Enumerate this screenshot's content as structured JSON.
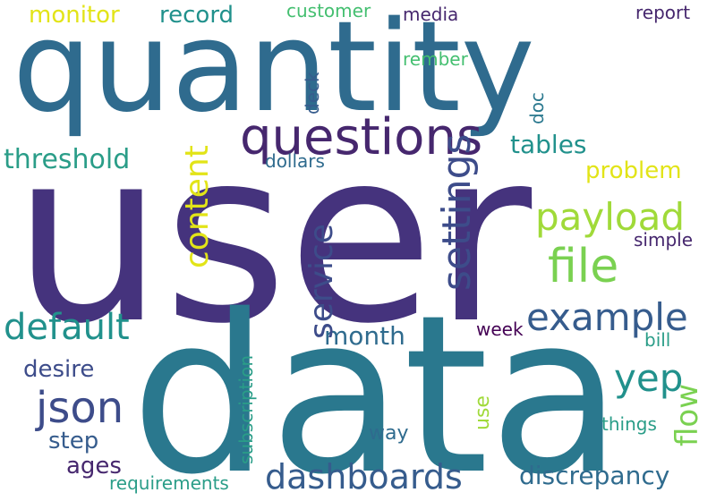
{
  "words": {
    "user": "user",
    "data": "data",
    "quantity": "quantity",
    "questions": "questions",
    "file": "file",
    "payload": "payload",
    "example": "example",
    "default": "default",
    "json": "json",
    "dashboards": "dashboards",
    "settings": "settings",
    "content": "content",
    "service": "service",
    "threshold": "threshold",
    "monitor": "monitor",
    "record": "record",
    "tables": "tables",
    "problem": "problem",
    "month": "month",
    "yep": "yep",
    "flow": "flow",
    "discrepancy": "discrepancy",
    "desire": "desire",
    "step": "step",
    "ages": "ages",
    "use": "use",
    "way": "way",
    "subscription": "subscription",
    "requirements": "requirements",
    "customer": "customer",
    "media": "media",
    "report": "report",
    "rember": "rember",
    "deck": "deck",
    "doc": "doc",
    "dollars": "dollars",
    "simple": "simple",
    "week": "week",
    "bill": "bill",
    "things": "things"
  },
  "colors": {
    "dark_purple": "#46276e",
    "purple": "#45337d",
    "indigo": "#3d4c8a",
    "blue": "#365c8d",
    "steel_blue": "#2f6b8e",
    "teal_blue": "#2a788e",
    "teal": "#21918c",
    "sea_green": "#2a9d88",
    "green": "#44bf70",
    "light_green": "#7ad151",
    "lime": "#a0da39",
    "yellow": "#e2e418",
    "deep_purple": "#440154"
  }
}
